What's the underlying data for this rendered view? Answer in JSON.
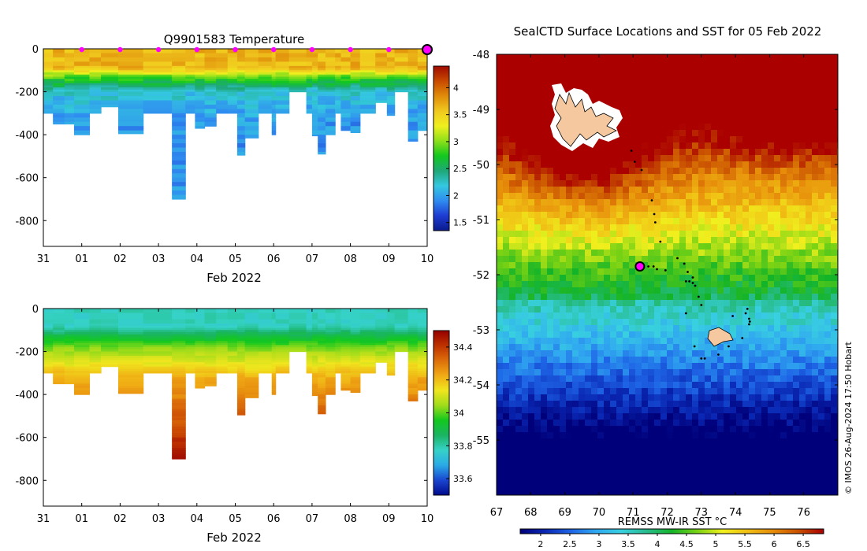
{
  "colors": {
    "temp_scale": [
      "#0a1a8c",
      "#1e3cd2",
      "#2f8cf0",
      "#34c8e0",
      "#1ea878",
      "#12c81e",
      "#8ee01a",
      "#f0f01e",
      "#f0c81e",
      "#e08c0a",
      "#c84a00",
      "#a00a00"
    ],
    "salt_scale": [
      "#000a8c",
      "#1a46d0",
      "#2aaae6",
      "#36d2c8",
      "#1ab464",
      "#12c81e",
      "#a0dc1a",
      "#f0e61e",
      "#f0aa14",
      "#dc6e0a",
      "#be3200",
      "#960000"
    ],
    "sst_scale": [
      "#00007a",
      "#0a28b4",
      "#1e64e6",
      "#30a8f0",
      "#38d0e0",
      "#28bc8c",
      "#14b428",
      "#78d214",
      "#f0f01e",
      "#f0be14",
      "#e68c0a",
      "#c85000",
      "#aa0000"
    ],
    "marker": "#ff00ff",
    "land": "#f5c8a0",
    "track": "#000000"
  },
  "chart_data": [
    {
      "id": "temperature-section",
      "type": "heatmap",
      "title": "Q9901583  Temperature",
      "xlabel": "Feb 2022",
      "ylabel": "",
      "x_ticks": [
        "31",
        "01",
        "02",
        "03",
        "04",
        "05",
        "06",
        "07",
        "08",
        "09",
        "10"
      ],
      "x_range": [
        0,
        10
      ],
      "y_ticks": [
        0,
        -200,
        -400,
        -600,
        -800
      ],
      "y_range": [
        -920,
        0
      ],
      "colorbar": {
        "ticks": [
          1.5,
          2,
          2.5,
          3,
          3.5,
          4
        ],
        "range": [
          1.35,
          4.4
        ]
      },
      "profile_markers": [
        1,
        2,
        3,
        4,
        5,
        6,
        7,
        8,
        9
      ],
      "current_profile": 10,
      "profiles": [
        {
          "x0": 0.0,
          "x1": 0.25,
          "depth": 300
        },
        {
          "x0": 0.25,
          "x1": 0.55,
          "depth": 350
        },
        {
          "x0": 0.55,
          "x1": 0.8,
          "depth": 350
        },
        {
          "x0": 0.8,
          "x1": 1.2,
          "depth": 400
        },
        {
          "x0": 1.2,
          "x1": 1.5,
          "depth": 300
        },
        {
          "x0": 1.5,
          "x1": 1.95,
          "depth": 270
        },
        {
          "x0": 1.95,
          "x1": 2.6,
          "depth": 395
        },
        {
          "x0": 2.6,
          "x1": 3.35,
          "depth": 300
        },
        {
          "x0": 3.35,
          "x1": 3.7,
          "depth": 700
        },
        {
          "x0": 3.7,
          "x1": 3.95,
          "depth": 300
        },
        {
          "x0": 3.95,
          "x1": 4.2,
          "depth": 370
        },
        {
          "x0": 4.2,
          "x1": 4.5,
          "depth": 360
        },
        {
          "x0": 4.5,
          "x1": 4.8,
          "depth": 300
        },
        {
          "x0": 4.8,
          "x1": 5.05,
          "depth": 300
        },
        {
          "x0": 5.05,
          "x1": 5.25,
          "depth": 495
        },
        {
          "x0": 5.25,
          "x1": 5.6,
          "depth": 415
        },
        {
          "x0": 5.6,
          "x1": 5.95,
          "depth": 300
        },
        {
          "x0": 5.95,
          "x1": 6.05,
          "depth": 400
        },
        {
          "x0": 6.05,
          "x1": 6.4,
          "depth": 300
        },
        {
          "x0": 6.4,
          "x1": 6.85,
          "depth": 200
        },
        {
          "x0": 6.85,
          "x1": 7.0,
          "depth": 300
        },
        {
          "x0": 7.0,
          "x1": 7.15,
          "depth": 405
        },
        {
          "x0": 7.15,
          "x1": 7.35,
          "depth": 490
        },
        {
          "x0": 7.35,
          "x1": 7.6,
          "depth": 400
        },
        {
          "x0": 7.6,
          "x1": 7.75,
          "depth": 300
        },
        {
          "x0": 7.75,
          "x1": 8.0,
          "depth": 380
        },
        {
          "x0": 8.0,
          "x1": 8.25,
          "depth": 390
        },
        {
          "x0": 8.25,
          "x1": 8.65,
          "depth": 300
        },
        {
          "x0": 8.65,
          "x1": 8.95,
          "depth": 250
        },
        {
          "x0": 8.95,
          "x1": 9.15,
          "depth": 310
        },
        {
          "x0": 9.15,
          "x1": 9.5,
          "depth": 200
        },
        {
          "x0": 9.5,
          "x1": 9.75,
          "depth": 430
        },
        {
          "x0": 9.75,
          "x1": 10.0,
          "depth": 380
        }
      ]
    },
    {
      "id": "salinity-section",
      "type": "heatmap",
      "title": "",
      "xlabel": "Feb 2022",
      "ylabel": "",
      "x_ticks": [
        "31",
        "01",
        "02",
        "03",
        "04",
        "05",
        "06",
        "07",
        "08",
        "09",
        "10"
      ],
      "x_range": [
        0,
        10
      ],
      "y_ticks": [
        0,
        -200,
        -400,
        -600,
        -800
      ],
      "y_range": [
        -920,
        0
      ],
      "colorbar": {
        "ticks": [
          33.6,
          33.8,
          34,
          34.2,
          34.4
        ],
        "range": [
          33.5,
          34.5
        ]
      }
    },
    {
      "id": "sst-map",
      "type": "heatmap",
      "title": "SealCTD Surface Locations and SST for 05 Feb 2022",
      "xlabel": "",
      "ylabel": "",
      "x_ticks": [
        67,
        68,
        69,
        70,
        71,
        72,
        73,
        74,
        75,
        76
      ],
      "x_range": [
        67,
        77
      ],
      "y_ticks": [
        -48,
        -49,
        -50,
        -51,
        -52,
        -53,
        -54,
        -55
      ],
      "y_range": [
        -56,
        -48
      ],
      "colorbar": {
        "label": "REMSS MW-IR SST °C",
        "ticks": [
          2,
          2.5,
          3,
          3.5,
          4,
          4.5,
          5,
          5.5,
          6,
          6.5
        ],
        "range": [
          1.65,
          6.85
        ]
      },
      "current_position": {
        "lon": 71.2,
        "lat": -51.85
      },
      "track": [
        {
          "lon": 70.95,
          "lat": -49.75
        },
        {
          "lon": 71.05,
          "lat": -49.95
        },
        {
          "lon": 71.25,
          "lat": -50.1
        },
        {
          "lon": 71.55,
          "lat": -50.65
        },
        {
          "lon": 71.62,
          "lat": -50.9
        },
        {
          "lon": 71.65,
          "lat": -51.05
        },
        {
          "lon": 71.8,
          "lat": -51.4
        },
        {
          "lon": 72.3,
          "lat": -51.7
        },
        {
          "lon": 72.5,
          "lat": -51.8
        },
        {
          "lon": 72.6,
          "lat": -51.95
        },
        {
          "lon": 72.75,
          "lat": -52.05
        },
        {
          "lon": 72.55,
          "lat": -52.12
        },
        {
          "lon": 72.65,
          "lat": -52.12
        },
        {
          "lon": 72.75,
          "lat": -52.15
        },
        {
          "lon": 72.82,
          "lat": -52.2
        },
        {
          "lon": 72.92,
          "lat": -52.4
        },
        {
          "lon": 73.0,
          "lat": -52.55
        },
        {
          "lon": 72.55,
          "lat": -52.7
        },
        {
          "lon": 73.92,
          "lat": -52.75
        },
        {
          "lon": 74.3,
          "lat": -52.7
        },
        {
          "lon": 74.35,
          "lat": -52.62
        },
        {
          "lon": 74.4,
          "lat": -52.8
        },
        {
          "lon": 74.42,
          "lat": -52.85
        },
        {
          "lon": 74.4,
          "lat": -52.9
        },
        {
          "lon": 74.2,
          "lat": -53.15
        },
        {
          "lon": 73.8,
          "lat": -53.3
        },
        {
          "lon": 72.8,
          "lat": -53.3
        },
        {
          "lon": 73.5,
          "lat": -53.45
        },
        {
          "lon": 73.1,
          "lat": -53.52
        },
        {
          "lon": 73.0,
          "lat": -53.52
        },
        {
          "lon": 71.6,
          "lat": -51.85
        },
        {
          "lon": 71.45,
          "lat": -51.85
        },
        {
          "lon": 71.7,
          "lat": -51.9
        },
        {
          "lon": 71.95,
          "lat": -51.92
        }
      ],
      "credit": "© IMOS 26-Aug-2024 17:50 Hobart"
    }
  ]
}
